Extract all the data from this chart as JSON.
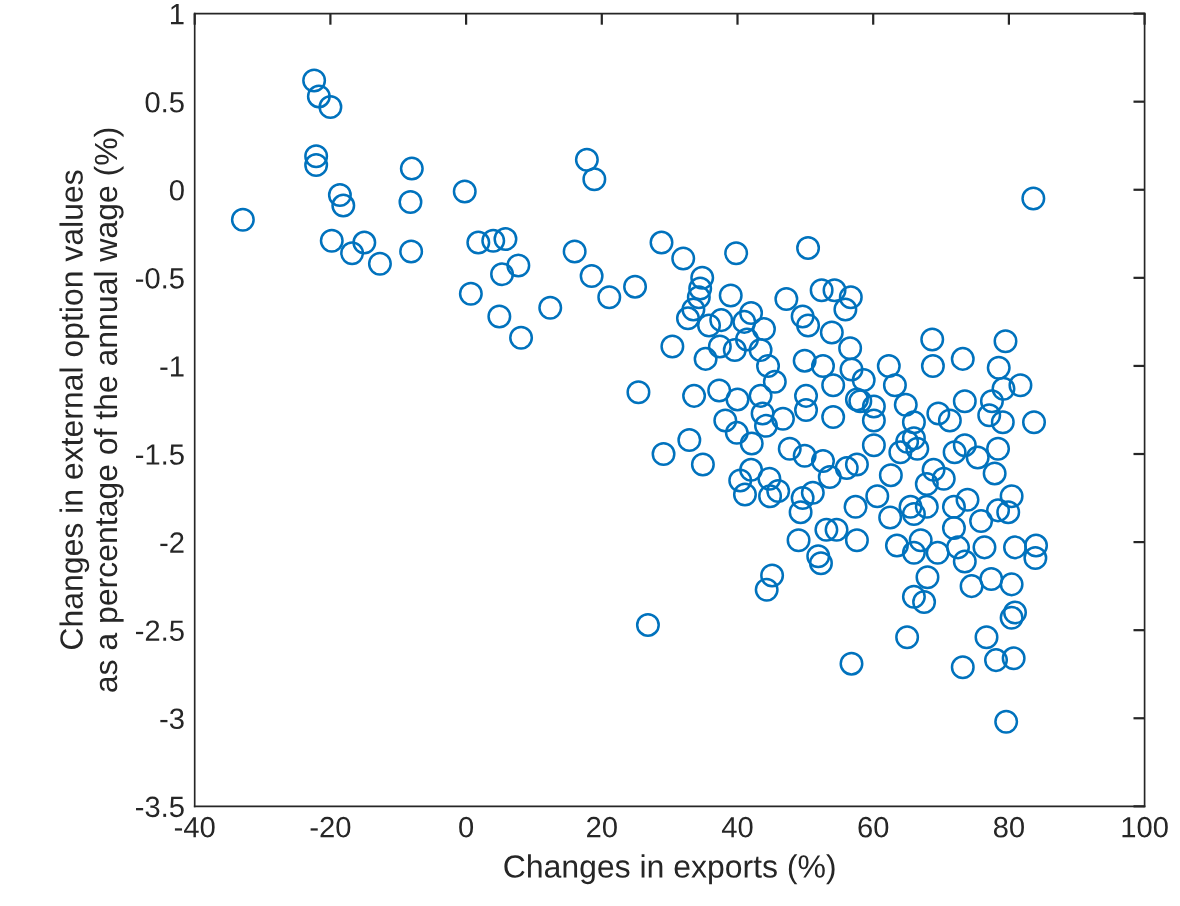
{
  "chart_data": {
    "type": "scatter",
    "xlabel": "Changes in exports (%)",
    "ylabel": "Changes in external option values\nas a percentage of the annual wage (%)",
    "xlim": [
      -40,
      100
    ],
    "xticks": [
      -40,
      -20,
      0,
      20,
      40,
      60,
      80,
      100
    ],
    "ylim": [
      -3.5,
      1
    ],
    "yticks": [
      -3.5,
      -3,
      -2.5,
      -2,
      -1.5,
      -1,
      -0.5,
      0,
      0.5,
      1
    ],
    "grid": false,
    "marker": "circle",
    "series": [
      {
        "color": "#0072bd",
        "x": [
          -32.9,
          -22.4,
          -21.7,
          -20,
          -22.1,
          -22.1,
          -18.6,
          -18.1,
          -19.8,
          -16.8,
          -15,
          -12.7,
          -8,
          -8.2,
          -8.1,
          -0.2,
          0.7,
          1.8,
          4,
          5.8,
          5.3,
          7.7,
          4.9,
          8.1,
          12.4,
          16,
          17.8,
          18.9,
          18.5,
          21.1,
          24.9,
          28.8,
          25.4,
          30.4,
          32,
          39.8,
          50.4,
          34.8,
          34.5,
          34.3,
          39,
          47.2,
          52.4,
          54.3,
          55.9,
          33.5,
          32.7,
          35.8,
          37.6,
          42,
          41,
          43.9,
          49.6,
          50.4,
          53.9,
          35.3,
          37.4,
          39.6,
          41.4,
          43.4,
          44.5,
          49.9,
          52.6,
          56.6,
          56.8,
          33.6,
          37.3,
          40,
          43.4,
          45.5,
          50.1,
          54.1,
          38.2,
          43.7,
          46.7,
          50.1,
          54.1,
          57.6,
          83.6,
          56.7,
          68.7,
          79.5,
          68.8,
          73.2,
          62.3,
          78.5,
          81.7,
          79.2,
          63.2,
          58.6,
          73.5,
          64.8,
          77.5,
          69.6,
          77.1,
          83.7,
          79.1,
          71.3,
          60.1,
          58.1,
          66,
          29.1,
          32.9,
          34.9,
          39.9,
          42.1,
          44.2,
          47.7,
          40.4,
          42,
          41.1,
          44.7,
          44.8,
          46,
          49.9,
          52.6,
          56.1,
          53.6,
          49.6,
          51.1,
          49.3,
          57.4,
          49,
          53.1,
          54.6,
          57.6,
          51.9,
          52.3,
          45.1,
          44.3,
          26.8,
          56.8,
          66,
          65,
          66.5,
          64,
          72,
          73.5,
          75.4,
          78.4,
          77.9,
          68.9,
          67.9,
          70.4,
          60.1,
          60.1,
          57.6,
          62.6,
          60.6,
          62.5,
          65.5,
          66,
          67.9,
          71.9,
          73.9,
          80.4,
          79.9,
          78.4,
          75.9,
          71.9,
          63.5,
          66,
          67,
          69.5,
          72.5,
          73.5,
          76.4,
          80.9,
          84,
          83.9,
          68,
          74.5,
          77.4,
          80.4,
          66,
          67.5,
          80.9,
          80.4,
          65,
          76.7,
          73.2,
          78.1,
          80.7,
          79.6
        ],
        "values": [
          -0.17,
          0.62,
          0.53,
          0.47,
          0.19,
          0.14,
          -0.03,
          -0.09,
          -0.29,
          -0.36,
          -0.3,
          -0.42,
          0.12,
          -0.07,
          -0.35,
          -0.01,
          -0.59,
          -0.3,
          -0.29,
          -0.28,
          -0.48,
          -0.43,
          -0.72,
          -0.84,
          -0.67,
          -0.35,
          0.17,
          0.06,
          -0.49,
          -0.61,
          -0.55,
          -0.3,
          -1.15,
          -0.89,
          -0.39,
          -0.36,
          -0.33,
          -0.5,
          -0.56,
          -0.61,
          -0.6,
          -0.62,
          -0.57,
          -0.57,
          -0.68,
          -0.68,
          -0.73,
          -0.77,
          -0.74,
          -0.7,
          -0.75,
          -0.79,
          -0.72,
          -0.77,
          -0.81,
          -0.96,
          -0.89,
          -0.91,
          -0.85,
          -0.91,
          -1,
          -0.97,
          -1,
          -0.9,
          -1.02,
          -1.17,
          -1.14,
          -1.19,
          -1.17,
          -1.09,
          -1.17,
          -1.11,
          -1.31,
          -1.27,
          -1.3,
          -1.25,
          -1.29,
          -1.19,
          -0.05,
          -0.61,
          -0.85,
          -0.86,
          -1,
          -0.96,
          -1,
          -1.01,
          -1.11,
          -1.13,
          -1.11,
          -1.08,
          -1.2,
          -1.22,
          -1.2,
          -1.27,
          -1.28,
          -1.32,
          -1.32,
          -1.31,
          -1.23,
          -1.2,
          -1.32,
          -1.5,
          -1.42,
          -1.56,
          -1.38,
          -1.44,
          -1.34,
          -1.47,
          -1.65,
          -1.59,
          -1.73,
          -1.64,
          -1.74,
          -1.71,
          -1.51,
          -1.54,
          -1.58,
          -1.63,
          -1.75,
          -1.72,
          -1.83,
          -1.8,
          -1.99,
          -1.93,
          -1.93,
          -1.99,
          -2.08,
          -2.12,
          -2.19,
          -2.27,
          -2.47,
          -2.69,
          -1.41,
          -1.43,
          -1.47,
          -1.49,
          -1.49,
          -1.45,
          -1.52,
          -1.47,
          -1.61,
          -1.59,
          -1.67,
          -1.64,
          -1.31,
          -1.45,
          -1.56,
          -1.62,
          -1.74,
          -1.86,
          -1.8,
          -1.84,
          -1.8,
          -1.8,
          -1.76,
          -1.74,
          -1.83,
          -1.82,
          -1.88,
          -1.92,
          -2.02,
          -2.06,
          -1.99,
          -2.06,
          -2.03,
          -2.11,
          -2.03,
          -2.03,
          -2.02,
          -2.09,
          -2.2,
          -2.25,
          -2.21,
          -2.24,
          -2.31,
          -2.34,
          -2.4,
          -2.43,
          -2.54,
          -2.54,
          -2.71,
          -2.67,
          -2.66,
          -3.02
        ]
      }
    ]
  }
}
